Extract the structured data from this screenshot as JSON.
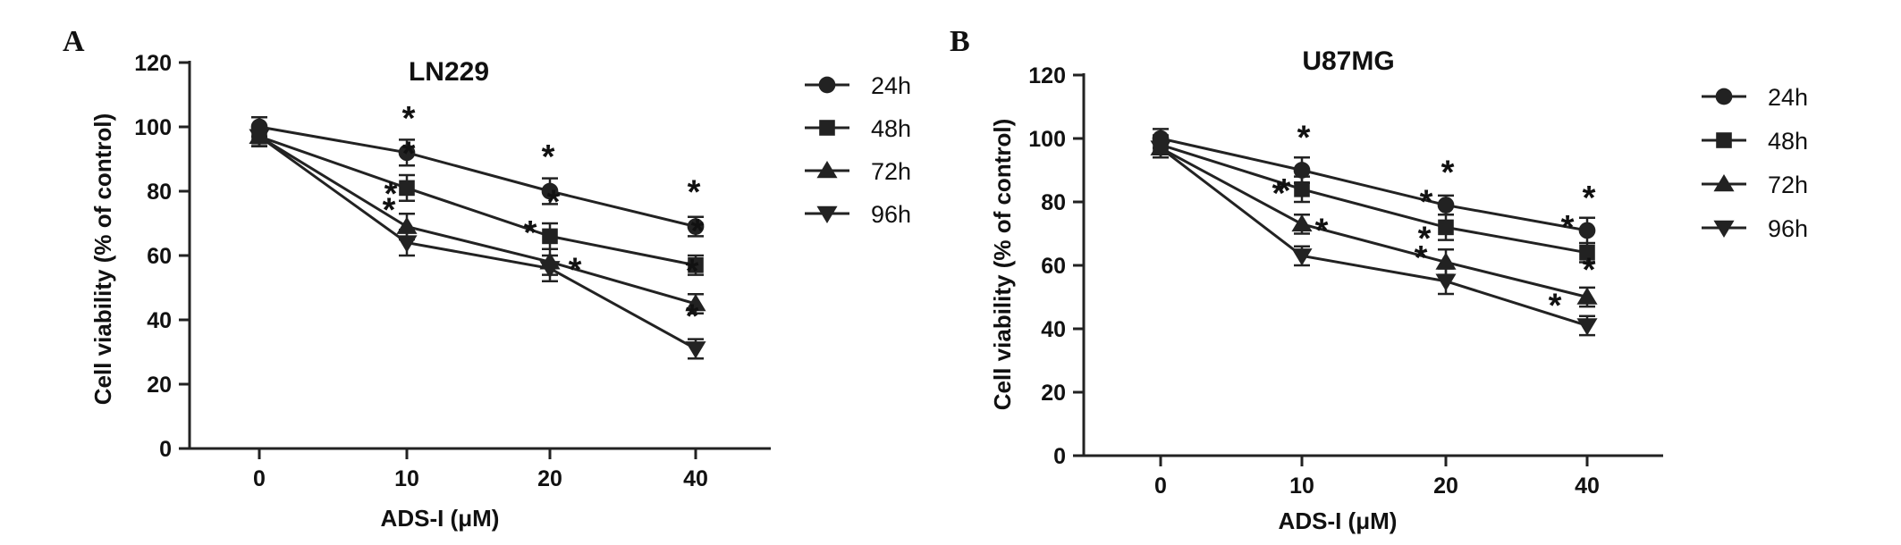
{
  "chart_data": [
    {
      "panel": "A",
      "type": "line",
      "title": "LN229",
      "xlabel": "ADS-I (μM)",
      "ylabel": "Cell viability  (% of control)",
      "categories": [
        "0",
        "10",
        "20",
        "40"
      ],
      "ylim": [
        0,
        120
      ],
      "yticks": [
        "0",
        "20",
        "40",
        "60",
        "80",
        "100",
        "120"
      ],
      "series": [
        {
          "name": "24h",
          "marker": "circle",
          "values": [
            100,
            92,
            80,
            69
          ],
          "errors": [
            3,
            4,
            4,
            3
          ],
          "stars": [
            false,
            true,
            true,
            true
          ]
        },
        {
          "name": "48h",
          "marker": "square",
          "values": [
            97,
            81,
            66,
            57
          ],
          "errors": [
            3,
            4,
            4,
            3
          ],
          "stars": [
            false,
            true,
            true,
            true
          ]
        },
        {
          "name": "72h",
          "marker": "triangle-up",
          "values": [
            97,
            69,
            58,
            45
          ],
          "errors": [
            3,
            4,
            4,
            3
          ],
          "stars": [
            false,
            true,
            true,
            true
          ]
        },
        {
          "name": "96h",
          "marker": "triangle-down",
          "values": [
            97,
            64,
            56,
            31
          ],
          "errors": [
            3,
            4,
            4,
            3
          ],
          "stars": [
            false,
            true,
            true,
            true
          ]
        }
      ]
    },
    {
      "panel": "B",
      "type": "line",
      "title": "U87MG",
      "xlabel": "ADS-I (μM)",
      "ylabel": "Cell viability (% of control)",
      "categories": [
        "0",
        "10",
        "20",
        "40"
      ],
      "ylim": [
        0,
        120
      ],
      "yticks": [
        "0",
        "20",
        "40",
        "60",
        "80",
        "100",
        "120"
      ],
      "series": [
        {
          "name": "24h",
          "marker": "circle",
          "values": [
            100,
            90,
            79,
            71
          ],
          "errors": [
            3,
            4,
            3,
            4
          ],
          "stars": [
            false,
            true,
            true,
            true
          ]
        },
        {
          "name": "48h",
          "marker": "square",
          "values": [
            98,
            84,
            72,
            64
          ],
          "errors": [
            3,
            4,
            4,
            3
          ],
          "stars": [
            false,
            true,
            true,
            true
          ]
        },
        {
          "name": "72h",
          "marker": "triangle-up",
          "values": [
            97,
            73,
            61,
            50
          ],
          "errors": [
            3,
            3,
            4,
            3
          ],
          "stars": [
            false,
            true,
            true,
            true
          ]
        },
        {
          "name": "96h",
          "marker": "triangle-down",
          "values": [
            97,
            63,
            55,
            41
          ],
          "errors": [
            3,
            3,
            4,
            3
          ],
          "stars": [
            false,
            true,
            true,
            true
          ]
        }
      ]
    }
  ],
  "star_symbol": "*",
  "colors": {
    "ink": "#222222",
    "background": "#ffffff"
  }
}
